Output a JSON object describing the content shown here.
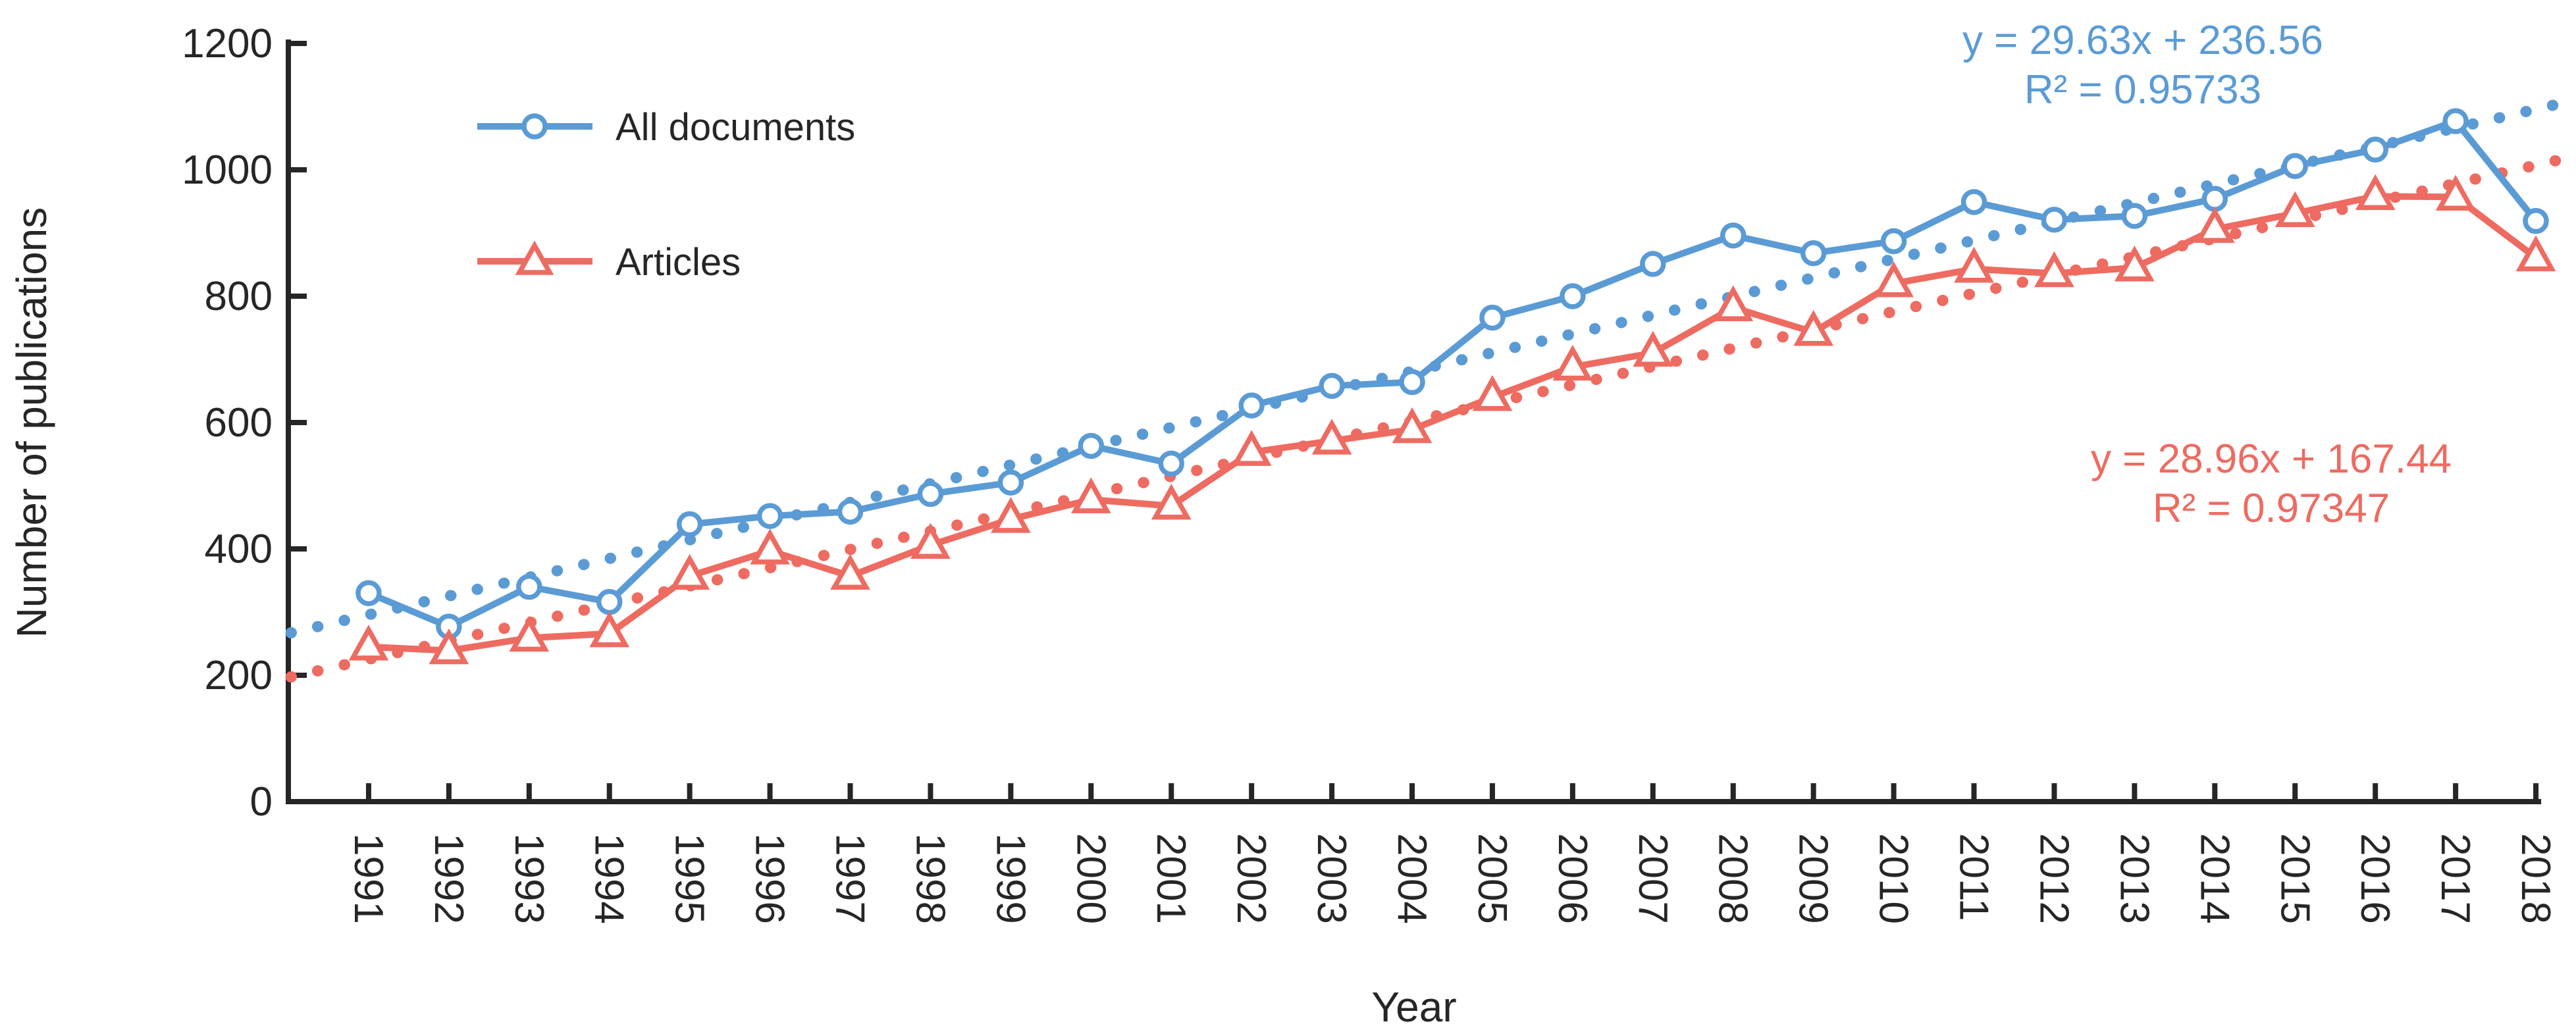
{
  "colors": {
    "background": "#FFFFFF",
    "axis": "#262626",
    "tick_label": "#262626",
    "all_documents_blue": "#5B9BD5",
    "articles_red": "#EE6B61"
  },
  "chart_data": {
    "type": "line",
    "title": "",
    "xlabel": "Year",
    "ylabel": "Number of publications",
    "x_categories": [
      "1991",
      "1992",
      "1993",
      "1994",
      "1995",
      "1996",
      "1997",
      "1998",
      "1999",
      "2000",
      "2001",
      "2002",
      "2003",
      "2004",
      "2005",
      "2006",
      "2007",
      "2008",
      "2009",
      "2010",
      "2011",
      "2012",
      "2013",
      "2014",
      "2015",
      "2016",
      "2017",
      "2018"
    ],
    "ylim": [
      0,
      1200
    ],
    "y_ticks": [
      0,
      200,
      400,
      600,
      800,
      1000,
      1200
    ],
    "grid": false,
    "legend_position": "upper-left-inside",
    "x_tick_label_rotation_deg": 90,
    "series": [
      {
        "name": "All documents",
        "marker": "circle",
        "color": "#5B9BD5",
        "values": [
          330,
          277,
          340,
          316,
          439,
          452,
          459,
          487,
          505,
          563,
          535,
          627,
          658,
          664,
          766,
          800,
          851,
          896,
          868,
          887,
          949,
          921,
          927,
          954,
          1006,
          1032,
          1077,
          919
        ],
        "trendline": {
          "style": "dotted",
          "slope": 29.63,
          "intercept": 236.56,
          "equation": "y = 29.63x + 236.56",
          "r_squared": 0.95733,
          "r_squared_label": "R² = 0.95733"
        }
      },
      {
        "name": "Articles",
        "marker": "triangle",
        "color": "#EE6B61",
        "values": [
          245,
          239,
          259,
          266,
          357,
          397,
          357,
          406,
          447,
          478,
          468,
          553,
          571,
          589,
          640,
          688,
          710,
          782,
          743,
          820,
          843,
          836,
          845,
          906,
          931,
          958,
          957,
          861
        ],
        "trendline": {
          "style": "dotted",
          "slope": 28.96,
          "intercept": 167.44,
          "equation": "y = 28.96x + 167.44",
          "r_squared": 0.97347,
          "r_squared_label": "R² = 0.97347"
        }
      }
    ]
  }
}
